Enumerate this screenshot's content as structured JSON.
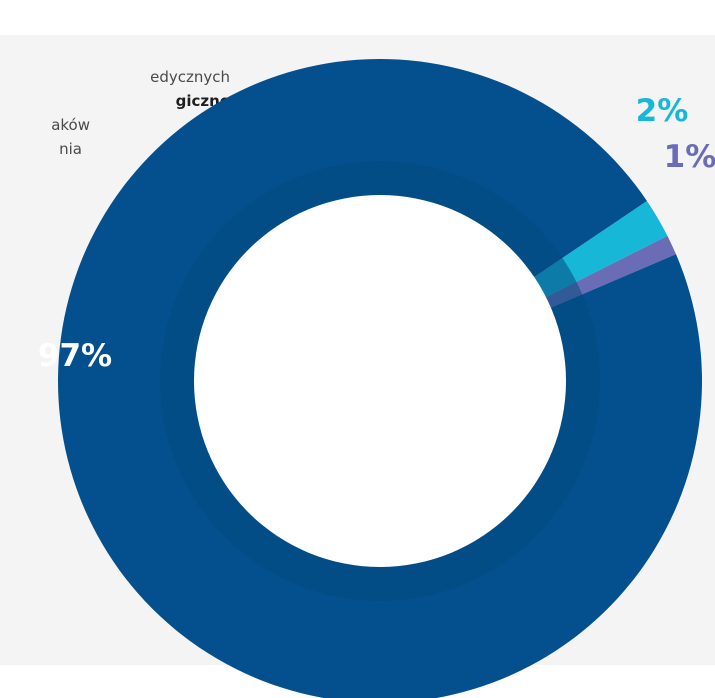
{
  "legend_fragments": [
    "edycznych",
    "giczne",
    "aków",
    "nia"
  ],
  "chart_data": {
    "type": "pie",
    "style": "donut",
    "slices": [
      {
        "label": "97%",
        "value": 97,
        "color": "#04508e"
      },
      {
        "label": "2%",
        "value": 2,
        "color": "#17b7d8"
      },
      {
        "label": "1%",
        "value": 1,
        "color": "#6a6cb6"
      }
    ],
    "label_colors": [
      "#ffffff",
      "#17b7d8",
      "#6a6cb6"
    ],
    "inner_ring_color": "#034a80"
  }
}
